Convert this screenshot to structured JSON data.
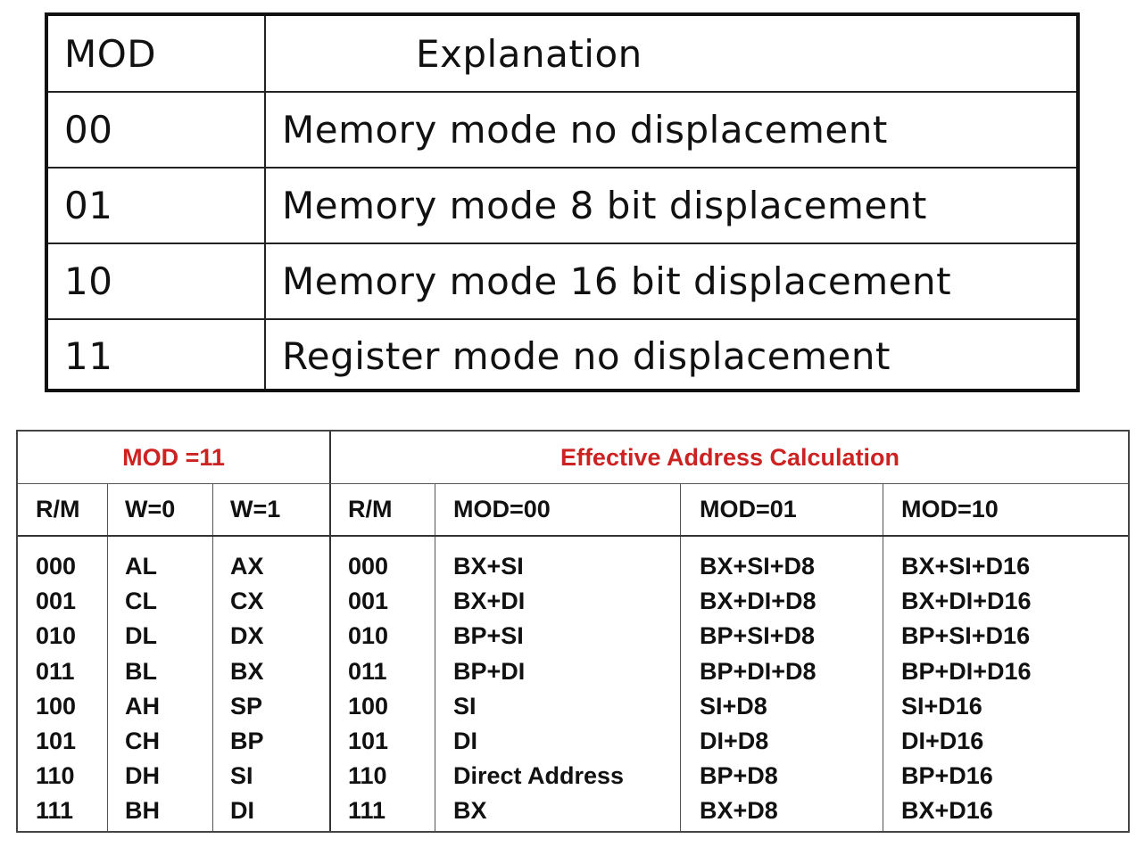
{
  "mod_table": {
    "headers": {
      "mod": "MOD",
      "explanation": "Explanation"
    },
    "rows": [
      {
        "mod": "00",
        "explanation": "Memory mode no displacement"
      },
      {
        "mod": "01",
        "explanation": "Memory mode 8 bit displacement"
      },
      {
        "mod": "10",
        "explanation": "Memory mode 16 bit displacement"
      },
      {
        "mod": "11",
        "explanation": "Register mode no displacement"
      }
    ]
  },
  "ea_table": {
    "group_headers": {
      "register": "MOD =11",
      "effective": "Effective Address Calculation"
    },
    "column_headers": [
      "R/M",
      "W=0",
      "W=1",
      "R/M",
      "MOD=00",
      "MOD=01",
      "MOD=10"
    ],
    "columns": {
      "rm_left": [
        "000",
        "001",
        "010",
        "011",
        "100",
        "101",
        "110",
        "111"
      ],
      "w0": [
        "AL",
        "CL",
        "DL",
        "BL",
        "AH",
        "CH",
        "DH",
        "BH"
      ],
      "w1": [
        "AX",
        "CX",
        "DX",
        "BX",
        "SP",
        "BP",
        "SI",
        "DI"
      ],
      "rm_right": [
        "000",
        "001",
        "010",
        "011",
        "100",
        "101",
        "110",
        "111"
      ],
      "mod00": [
        "BX+SI",
        "BX+DI",
        "BP+SI",
        "BP+DI",
        "SI",
        "DI",
        "Direct Address",
        "BX"
      ],
      "mod01": [
        "BX+SI+D8",
        "BX+DI+D8",
        "BP+SI+D8",
        "BP+DI+D8",
        "SI+D8",
        "DI+D8",
        "BP+D8",
        "BX+D8"
      ],
      "mod10": [
        "BX+SI+D16",
        "BX+DI+D16",
        "BP+SI+D16",
        "BP+DI+D16",
        "SI+D16",
        "DI+D16",
        "BP+D16",
        "BX+D16"
      ]
    }
  },
  "colors": {
    "header_red": "#cc2222",
    "border": "#111111"
  }
}
